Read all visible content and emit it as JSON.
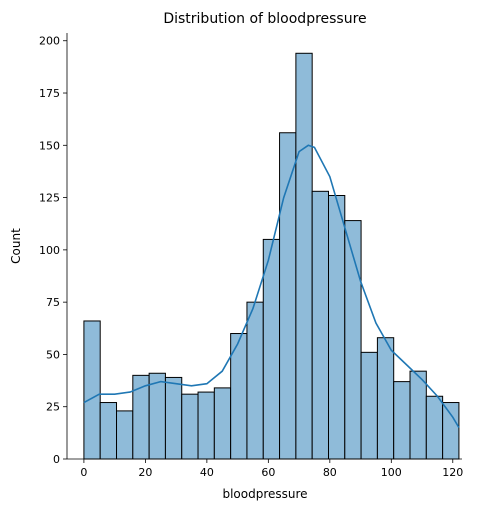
{
  "chart_data": {
    "type": "histogram",
    "title": "Distribution of bloodpressure",
    "xlabel": "bloodpressure",
    "ylabel": "Count",
    "bins": [
      0,
      5.3,
      10.61,
      15.91,
      21.22,
      26.52,
      31.83,
      37.13,
      42.43,
      47.74,
      53.04,
      58.35,
      63.65,
      68.96,
      74.26,
      79.57,
      84.87,
      90.17,
      95.48,
      100.78,
      106.09,
      111.39,
      116.7,
      122
    ],
    "values": [
      66,
      27,
      23,
      40,
      41,
      39,
      31,
      32,
      34,
      60,
      75,
      105,
      156,
      194,
      128,
      126,
      114,
      51,
      58,
      37,
      42,
      30,
      27
    ],
    "color": "#8fbbd9",
    "edgecolor": "#000000",
    "kde": {
      "color": "#1f77b4",
      "x": [
        0,
        5,
        10,
        15,
        20,
        25,
        30,
        35,
        40,
        45,
        50,
        55,
        60,
        65,
        70,
        73,
        75,
        80,
        85,
        90,
        95,
        100,
        105,
        110,
        115,
        120,
        122
      ],
      "values": [
        27,
        31,
        31,
        32,
        35,
        37,
        36,
        35,
        36,
        42,
        55,
        72,
        95,
        125,
        147,
        150,
        149,
        135,
        110,
        85,
        65,
        52,
        45,
        38,
        30,
        20,
        15
      ]
    },
    "xlim": [
      -5.5,
      123
    ],
    "ylim": [
      0,
      203.7
    ],
    "xticks": [
      0,
      20,
      40,
      60,
      80,
      100,
      120
    ],
    "yticks": [
      0,
      25,
      50,
      75,
      100,
      125,
      150,
      175,
      200
    ]
  }
}
